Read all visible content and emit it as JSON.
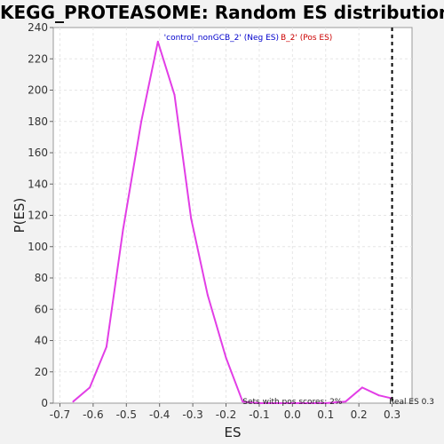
{
  "chart_data": {
    "type": "line",
    "title": "KEGG_PROTEASOME: Random ES distribution",
    "xlabel": "ES",
    "ylabel": "P(ES)",
    "xlim": [
      -0.72,
      0.36
    ],
    "ylim": [
      0,
      240
    ],
    "xticks": [
      "-0.7",
      "-0.6",
      "-0.5",
      "-0.4",
      "-0.3",
      "-0.2",
      "-0.1",
      "0.0",
      "0.1",
      "0.2",
      "0.3"
    ],
    "yticks": [
      "0",
      "20",
      "40",
      "60",
      "80",
      "100",
      "120",
      "140",
      "160",
      "180",
      "200",
      "220",
      "240"
    ],
    "grid": true,
    "legend": [
      {
        "label": "'control_nonGCB_2' (Neg ES)",
        "color": "#0000cc"
      },
      {
        "label": "B_2' (Pos ES)",
        "color": "#cc0000"
      }
    ],
    "legend_placement": "top-center",
    "series": [
      {
        "color": "#e23ee6",
        "x": [
          -0.66,
          -0.61,
          -0.56,
          -0.51,
          -0.455,
          -0.405,
          -0.355,
          -0.305,
          -0.255,
          -0.2,
          -0.15,
          -0.1,
          -0.05,
          0.0,
          0.05,
          0.1,
          0.16,
          0.21,
          0.26,
          0.3
        ],
        "y": [
          1,
          10,
          36,
          111,
          180,
          231,
          197,
          118,
          69,
          29,
          1,
          0,
          0,
          0,
          0,
          0,
          1,
          10,
          5,
          3
        ]
      }
    ],
    "real_es": 0.3,
    "annotations": {
      "pos_scores": "Sets with pos scores: 2%",
      "real_es_label": "Real ES 0.3"
    }
  }
}
